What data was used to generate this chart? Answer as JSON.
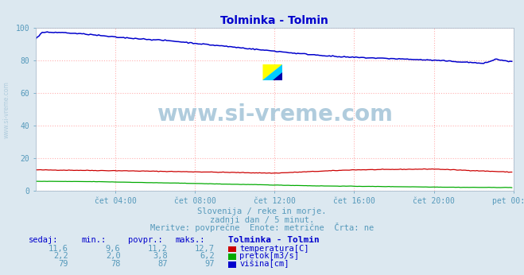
{
  "title": "Tolminka - Tolmin",
  "title_color": "#0000cc",
  "bg_color": "#dce8f0",
  "plot_bg_color": "#ffffff",
  "grid_color": "#ffb0b0",
  "xlabel_ticks": [
    "čet 04:00",
    "čet 08:00",
    "čet 12:00",
    "čet 16:00",
    "čet 20:00",
    "pet 00:00"
  ],
  "ylabel_ticks": [
    0,
    20,
    40,
    60,
    80,
    100
  ],
  "ylim": [
    0,
    100
  ],
  "n_points": 288,
  "temp_color": "#cc0000",
  "flow_color": "#00aa00",
  "height_color": "#0000cc",
  "watermark_text": "www.si-vreme.com",
  "watermark_color": "#b0ccdd",
  "subtitle1": "Slovenija / reke in morje.",
  "subtitle2": "zadnji dan / 5 minut.",
  "subtitle3": "Meritve: povprečne  Enote: metrične  Črta: ne",
  "subtitle_color": "#5599bb",
  "table_header_labels": [
    "sedaj:",
    "min.:",
    "povpr.:",
    "maks.:",
    "Tolminka - Tolmin"
  ],
  "table_rows": [
    [
      "11,6",
      "9,6",
      "11,2",
      "12,7",
      "temperatura[C]",
      "#cc0000"
    ],
    [
      "2,2",
      "2,0",
      "3,8",
      "6,2",
      "pretok[m3/s]",
      "#00aa00"
    ],
    [
      "79",
      "78",
      "87",
      "97",
      "višina[cm]",
      "#0000cc"
    ]
  ],
  "table_color": "#0000cc",
  "table_num_color": "#5599bb",
  "figsize": [
    6.59,
    3.46
  ],
  "dpi": 100
}
